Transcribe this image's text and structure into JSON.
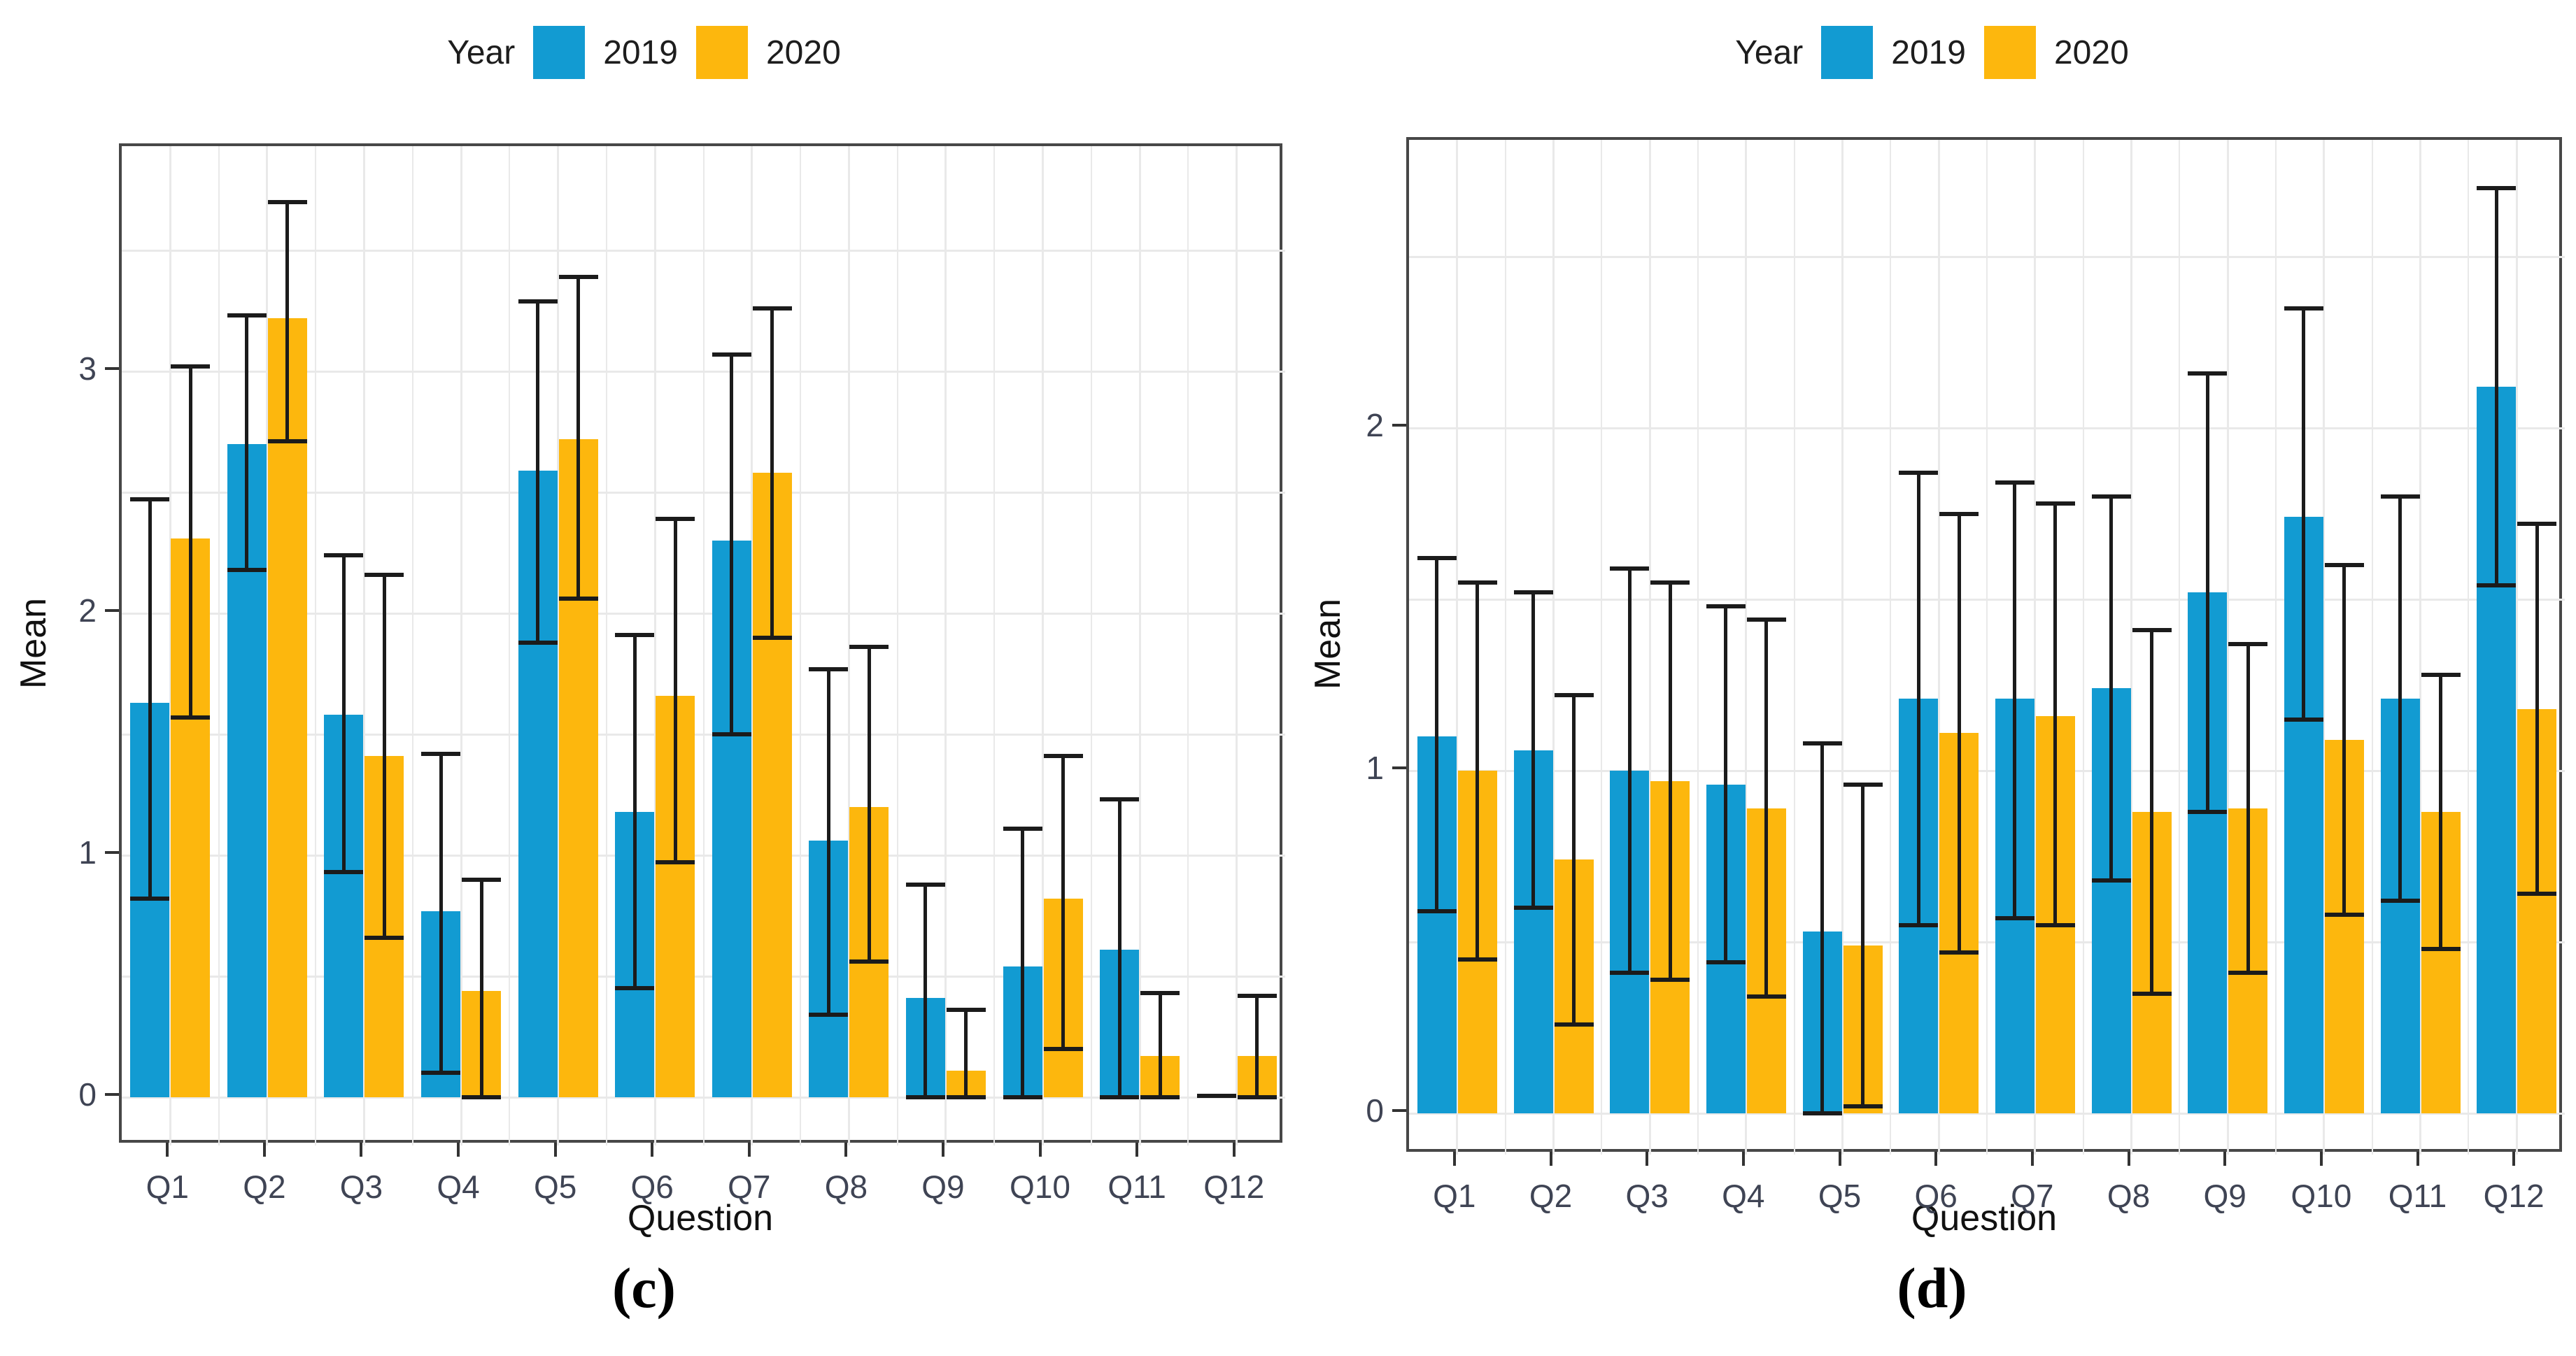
{
  "charts": [
    {
      "id": "c",
      "type": "bar",
      "caption": "(c)",
      "xlabel": "Question",
      "ylabel": "Mean",
      "legend": {
        "title": "Year",
        "position": "top-center",
        "items": [
          {
            "label": "2019",
            "color": "#129bd2"
          },
          {
            "label": "2020",
            "color": "#fdb70d"
          }
        ]
      },
      "grid": "on",
      "categories": [
        "Q1",
        "Q2",
        "Q3",
        "Q4",
        "Q5",
        "Q6",
        "Q7",
        "Q8",
        "Q9",
        "Q10",
        "Q11",
        "Q12"
      ],
      "yticks": [
        0,
        1,
        2,
        3
      ],
      "ylim": [
        0,
        3.93
      ],
      "series": [
        {
          "name": "2019",
          "color": "#129bd2",
          "values": [
            1.63,
            2.7,
            1.58,
            0.77,
            2.59,
            1.18,
            2.3,
            1.06,
            0.41,
            0.54,
            0.61,
            0.005
          ],
          "err_low": [
            0.82,
            2.18,
            0.93,
            0.1,
            1.88,
            0.45,
            1.5,
            0.34,
            0.0,
            0.0,
            0.0,
            0.005
          ],
          "err_high": [
            2.47,
            3.23,
            2.24,
            1.42,
            3.29,
            1.91,
            3.07,
            1.77,
            0.88,
            1.11,
            1.23,
            0.005
          ]
        },
        {
          "name": "2020",
          "color": "#fdb70d",
          "values": [
            2.31,
            3.22,
            1.41,
            0.44,
            2.72,
            1.66,
            2.58,
            1.2,
            0.11,
            0.82,
            0.17,
            0.17
          ],
          "err_low": [
            1.57,
            2.71,
            0.66,
            0.0,
            2.06,
            0.97,
            1.9,
            0.56,
            0.0,
            0.2,
            0.0,
            0.0
          ],
          "err_high": [
            3.02,
            3.7,
            2.16,
            0.9,
            3.39,
            2.39,
            3.26,
            1.86,
            0.36,
            1.41,
            0.43,
            0.42
          ]
        }
      ]
    },
    {
      "id": "d",
      "type": "bar",
      "caption": "(d)",
      "xlabel": "Question",
      "ylabel": "Mean",
      "legend": {
        "title": "Year",
        "position": "top-center",
        "items": [
          {
            "label": "2019",
            "color": "#129bd2"
          },
          {
            "label": "2020",
            "color": "#fdb70d"
          }
        ]
      },
      "grid": "on",
      "categories": [
        "Q1",
        "Q2",
        "Q3",
        "Q4",
        "Q5",
        "Q6",
        "Q7",
        "Q8",
        "Q9",
        "Q10",
        "Q11",
        "Q12"
      ],
      "yticks": [
        0,
        1,
        2
      ],
      "ylim": [
        0,
        2.84
      ],
      "series": [
        {
          "name": "2019",
          "color": "#129bd2",
          "values": [
            1.1,
            1.06,
            1.0,
            0.96,
            0.53,
            1.21,
            1.21,
            1.24,
            1.52,
            1.74,
            1.21,
            2.12
          ],
          "err_low": [
            0.59,
            0.6,
            0.41,
            0.44,
            0.0,
            0.55,
            0.57,
            0.68,
            0.88,
            1.15,
            0.62,
            1.54
          ],
          "err_high": [
            1.62,
            1.52,
            1.59,
            1.48,
            1.08,
            1.87,
            1.84,
            1.8,
            2.16,
            2.35,
            1.8,
            2.7
          ]
        },
        {
          "name": "2020",
          "color": "#fdb70d",
          "values": [
            1.0,
            0.74,
            0.97,
            0.89,
            0.49,
            1.11,
            1.16,
            0.88,
            0.89,
            1.09,
            0.88,
            1.18
          ],
          "err_low": [
            0.45,
            0.26,
            0.39,
            0.34,
            0.02,
            0.47,
            0.55,
            0.35,
            0.41,
            0.58,
            0.48,
            0.64
          ],
          "err_high": [
            1.55,
            1.22,
            1.55,
            1.44,
            0.96,
            1.75,
            1.78,
            1.41,
            1.37,
            1.6,
            1.28,
            1.72
          ]
        }
      ]
    }
  ]
}
